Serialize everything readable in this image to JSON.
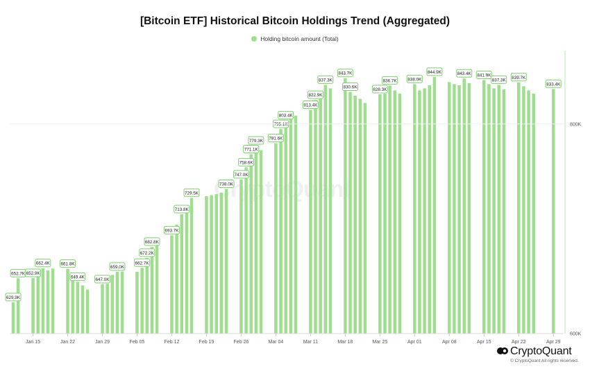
{
  "chart_data": {
    "type": "bar",
    "title": "[Bitcoin ETF] Historical Bitcoin Holdings Trend (Aggregated)",
    "legend": {
      "position": "top-center",
      "entries": [
        {
          "name": "Holding bitcoin amount (Total)",
          "color": "#9fde8f"
        }
      ]
    },
    "bar_color": "#9fde8f",
    "label_border_color": "#7fce6f",
    "ylim": [
      600000,
      870000
    ],
    "yticks": [
      {
        "value": 800000,
        "label": "800K"
      },
      {
        "value": 600000,
        "label": "600K"
      }
    ],
    "grid": false,
    "xticks": [
      "Jan 15",
      "Jan 22",
      "Jan 29",
      "Feb 05",
      "Feb 12",
      "Feb 19",
      "Feb 26",
      "Mar 04",
      "Mar 11",
      "Mar 18",
      "Mar 25",
      "Apr 01",
      "Apr 08",
      "Apr 15",
      "Apr 22",
      "Apr 29"
    ],
    "series": [
      {
        "name": "Holding bitcoin amount (Total)",
        "points": [
          {
            "d": 0,
            "v": 629900,
            "label": "629.9K"
          },
          {
            "d": 1,
            "v": 652700,
            "label": "652.7K"
          },
          {
            "d": 4,
            "v": 652900,
            "label": "652.9K"
          },
          {
            "d": 5,
            "v": 656500
          },
          {
            "d": 6,
            "v": 662400,
            "label": "662.4K"
          },
          {
            "d": 7,
            "v": 660200
          },
          {
            "d": 8,
            "v": 662000
          },
          {
            "d": 11,
            "v": 661800,
            "label": "661.8K"
          },
          {
            "d": 12,
            "v": 652000
          },
          {
            "d": 13,
            "v": 649400,
            "label": "649.4K"
          },
          {
            "d": 14,
            "v": 646000
          },
          {
            "d": 15,
            "v": 642000
          },
          {
            "d": 18,
            "v": 647000,
            "label": "647.0K"
          },
          {
            "d": 19,
            "v": 647500
          },
          {
            "d": 20,
            "v": 656000
          },
          {
            "d": 21,
            "v": 659000,
            "label": "659.0K"
          },
          {
            "d": 22,
            "v": 659200
          },
          {
            "d": 25,
            "v": 659000
          },
          {
            "d": 26,
            "v": 662700,
            "label": "662.7K"
          },
          {
            "d": 27,
            "v": 672200,
            "label": "672.2K"
          },
          {
            "d": 28,
            "v": 682800,
            "label": "682.8K"
          },
          {
            "d": 29,
            "v": 685000
          },
          {
            "d": 32,
            "v": 693700,
            "label": "693.7K"
          },
          {
            "d": 33,
            "v": 704000
          },
          {
            "d": 34,
            "v": 713800,
            "label": "713.8K"
          },
          {
            "d": 35,
            "v": 720000
          },
          {
            "d": 36,
            "v": 729500,
            "label": "729.5K"
          },
          {
            "d": 39,
            "v": 731000
          },
          {
            "d": 40,
            "v": 732000
          },
          {
            "d": 41,
            "v": 733000
          },
          {
            "d": 42,
            "v": 734500
          },
          {
            "d": 43,
            "v": 738000,
            "label": "738.0K"
          },
          {
            "d": 46,
            "v": 747000,
            "label": "747.0K"
          },
          {
            "d": 47,
            "v": 758600,
            "label": "758.6K"
          },
          {
            "d": 48,
            "v": 771100,
            "label": "771.1K"
          },
          {
            "d": 49,
            "v": 779300,
            "label": "779.3K"
          },
          {
            "d": 50,
            "v": 775000
          },
          {
            "d": 53,
            "v": 781600,
            "label": "781.6K"
          },
          {
            "d": 54,
            "v": 795100,
            "label": "795.1K"
          },
          {
            "d": 55,
            "v": 803400,
            "label": "803.4K"
          },
          {
            "d": 56,
            "v": 805000
          },
          {
            "d": 57,
            "v": 808000
          },
          {
            "d": 60,
            "v": 813400,
            "label": "813.4K"
          },
          {
            "d": 61,
            "v": 822900,
            "label": "822.9K"
          },
          {
            "d": 62,
            "v": 830000
          },
          {
            "d": 63,
            "v": 837300,
            "label": "837.3K"
          },
          {
            "d": 64,
            "v": 834000
          },
          {
            "d": 67,
            "v": 843700,
            "label": "843.7K"
          },
          {
            "d": 68,
            "v": 830600,
            "label": "830.6K"
          },
          {
            "d": 69,
            "v": 827000
          },
          {
            "d": 70,
            "v": 824000
          },
          {
            "d": 71,
            "v": 820000
          },
          {
            "d": 74,
            "v": 828300,
            "label": "828.3K"
          },
          {
            "d": 75,
            "v": 829000
          },
          {
            "d": 76,
            "v": 836700,
            "label": "836.7K"
          },
          {
            "d": 77,
            "v": 832000
          },
          {
            "d": 78,
            "v": 829000
          },
          {
            "d": 81,
            "v": 838000,
            "label": "838.0K"
          },
          {
            "d": 82,
            "v": 832000
          },
          {
            "d": 83,
            "v": 834000
          },
          {
            "d": 84,
            "v": 837000
          },
          {
            "d": 85,
            "v": 844900,
            "label": "844.9K"
          },
          {
            "d": 88,
            "v": 840000
          },
          {
            "d": 89,
            "v": 838000
          },
          {
            "d": 90,
            "v": 837000
          },
          {
            "d": 91,
            "v": 843400,
            "label": "843.4K"
          },
          {
            "d": 92,
            "v": 839000
          },
          {
            "d": 95,
            "v": 841900,
            "label": "841.9K"
          },
          {
            "d": 96,
            "v": 838000
          },
          {
            "d": 97,
            "v": 834000
          },
          {
            "d": 98,
            "v": 837300,
            "label": "837.3K"
          },
          {
            "d": 99,
            "v": 833000
          },
          {
            "d": 102,
            "v": 839700,
            "label": "839.7K"
          },
          {
            "d": 103,
            "v": 836000
          },
          {
            "d": 104,
            "v": 832000
          },
          {
            "d": 105,
            "v": 829000
          },
          {
            "d": 109,
            "v": 833400,
            "label": "833.4K"
          }
        ]
      }
    ]
  },
  "brand": {
    "name": "CryptoQuant",
    "copyright": "© CryptoQuant All rights reserved."
  },
  "watermark": "CryptoQuant"
}
